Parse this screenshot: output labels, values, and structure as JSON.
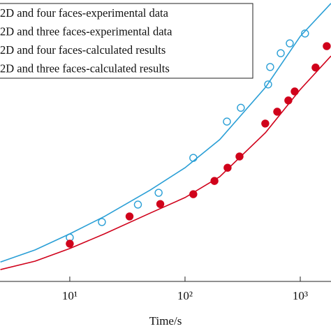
{
  "chart_data": {
    "type": "scatter-line",
    "x_label": "Time/s",
    "xscale": "log",
    "xlim": [
      2.48,
      1848
    ],
    "ylim": [
      0,
      100
    ],
    "xticks": [
      {
        "value": 10,
        "label": "10¹"
      },
      {
        "value": 100,
        "label": "10²"
      },
      {
        "value": 1000,
        "label": "10³"
      }
    ],
    "legend": "top-left",
    "series": [
      {
        "name": "2D and four faces-experimental data",
        "color": "#2a9fd6",
        "marker": "open-circle",
        "x": [
          10,
          19,
          39,
          59,
          118,
          231,
          305,
          526,
          548,
          677,
          811,
          1100
        ],
        "values": [
          15.6,
          21.1,
          27.3,
          31.5,
          43.9,
          56.8,
          61.7,
          70.0,
          76.2,
          81.1,
          84.6,
          88.1
        ]
      },
      {
        "name": "2D and three faces-experimental data",
        "color": "#d0021b",
        "marker": "filled-circle",
        "x": [
          10,
          33,
          61,
          118,
          180,
          234,
          297,
          497,
          631,
          788,
          895,
          1358,
          1698
        ],
        "values": [
          13.4,
          23.1,
          27.5,
          31.0,
          35.7,
          40.4,
          44.4,
          56.1,
          60.3,
          64.3,
          67.5,
          76.0,
          83.6
        ]
      },
      {
        "name": "2D and four faces-calculated results",
        "color": "#2a9fd6",
        "marker": "line",
        "x": [
          2.5,
          5,
          10,
          20,
          50,
          100,
          200,
          500,
          1000,
          1848
        ],
        "values": [
          6.9,
          11.2,
          16.9,
          23.1,
          32.5,
          40.4,
          50.4,
          69.0,
          87.1,
          98.8
        ]
      },
      {
        "name": "2D and three faces-calculated results",
        "color": "#d0021b",
        "marker": "line",
        "x": [
          2.5,
          5,
          10,
          20,
          50,
          100,
          200,
          500,
          1000,
          1848
        ],
        "values": [
          4.2,
          7.2,
          11.7,
          16.9,
          24.3,
          29.8,
          37.2,
          52.9,
          68.2,
          80.1
        ]
      }
    ]
  }
}
